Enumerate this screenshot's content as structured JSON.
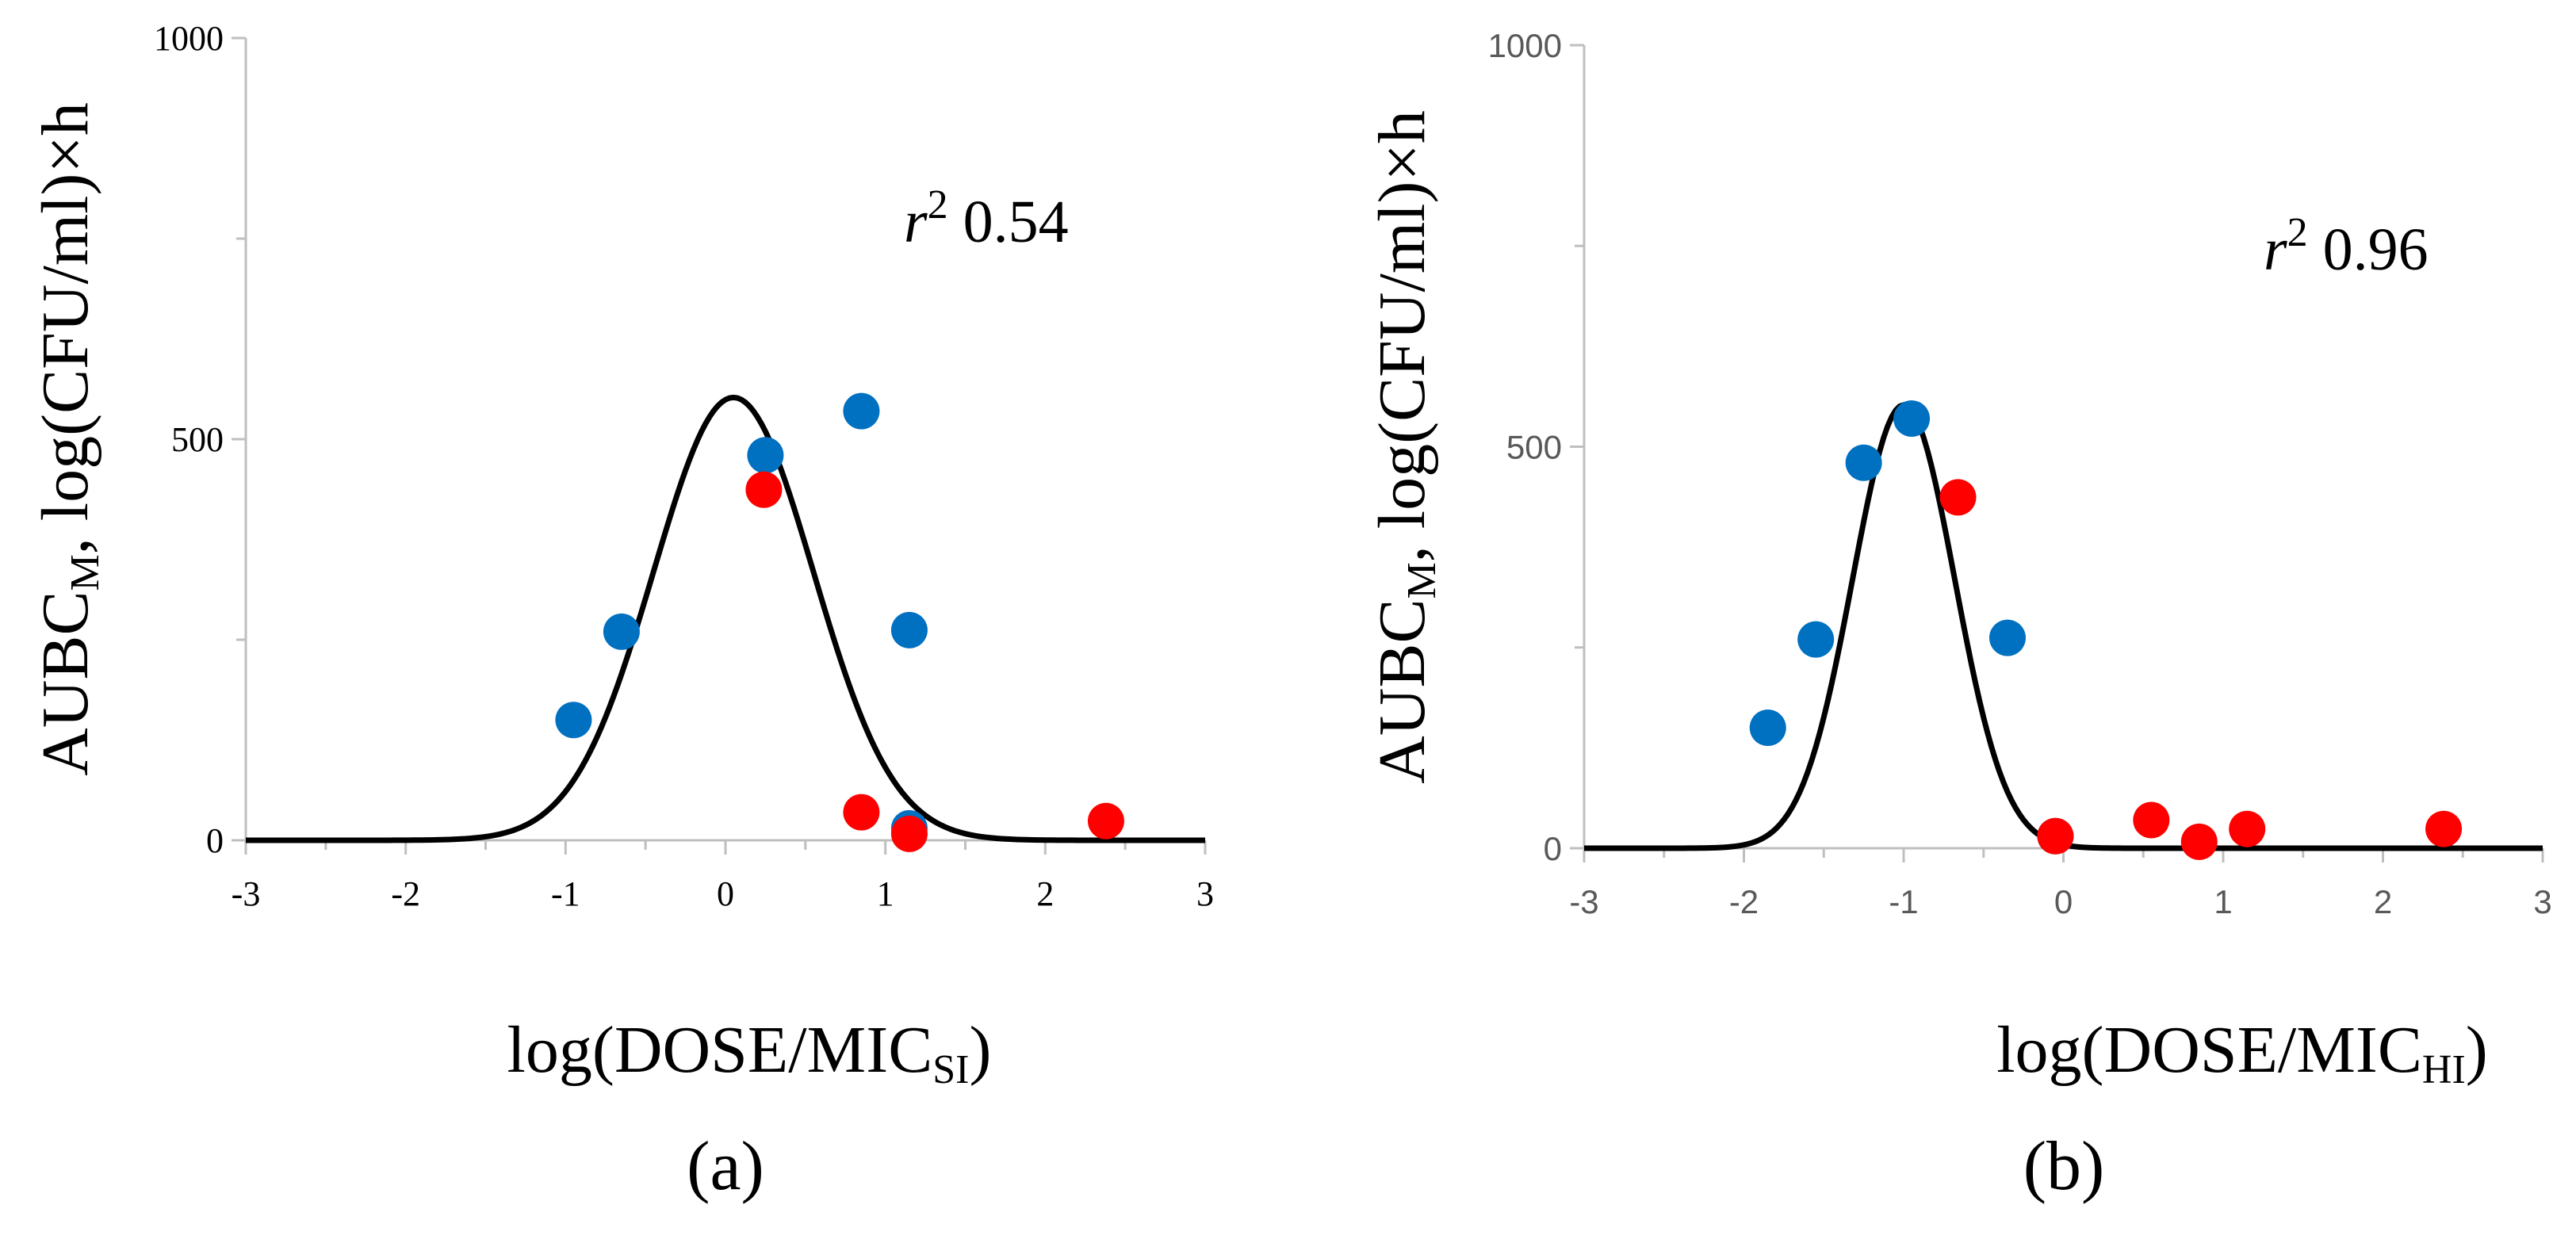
{
  "chart_data": [
    {
      "type": "scatter",
      "panel_label": "(a)",
      "ylabel": {
        "main": "AUBC",
        "sub": "M",
        "rest": ", log(CFU/ml)×h"
      },
      "xlabel": {
        "main": "log(DOSE/MIC",
        "sub": "SI",
        "close": ")"
      },
      "xlim": [
        -3,
        3
      ],
      "ylim": [
        0,
        1000
      ],
      "xticks": [
        "-3",
        "-2",
        "-1",
        "0",
        "1",
        "2",
        "3"
      ],
      "yticks": [
        "0",
        "500",
        "1000"
      ],
      "annotation": {
        "r": "r",
        "sup": "2",
        "value": " 0.54"
      },
      "fit_curve": {
        "peak_x": 0.05,
        "peak_y": 552,
        "sigma": 0.5,
        "color": "#000000"
      },
      "series": [
        {
          "name": "blue",
          "color": "#0070C0",
          "points": [
            {
              "x": -0.95,
              "y": 150
            },
            {
              "x": -0.65,
              "y": 260
            },
            {
              "x": 0.25,
              "y": 480
            },
            {
              "x": 0.85,
              "y": 535
            },
            {
              "x": 1.15,
              "y": 262
            },
            {
              "x": 1.15,
              "y": 15
            }
          ]
        },
        {
          "name": "red",
          "color": "#FF0000",
          "points": [
            {
              "x": 0.24,
              "y": 437
            },
            {
              "x": 0.85,
              "y": 35
            },
            {
              "x": 1.15,
              "y": 8
            },
            {
              "x": 2.38,
              "y": 24
            }
          ]
        }
      ]
    },
    {
      "type": "scatter",
      "panel_label": "(b)",
      "ylabel": {
        "main": "AUBC",
        "sub": "M",
        "rest": ", log(CFU/ml)×h"
      },
      "xlabel": {
        "main": "log(DOSE/MIC",
        "sub": "HI",
        "close": ")"
      },
      "xlim": [
        -3,
        3
      ],
      "ylim": [
        0,
        1000
      ],
      "xticks": [
        "-3",
        "-2",
        "-1",
        "0",
        "1",
        "2",
        "3"
      ],
      "yticks": [
        "0",
        "500",
        "1000"
      ],
      "annotation": {
        "r": "r",
        "sup": "2",
        "value": " 0.96"
      },
      "fit_curve": {
        "peak_x": -1.0,
        "peak_y": 552,
        "sigma": 0.32,
        "color": "#000000"
      },
      "series": [
        {
          "name": "blue",
          "color": "#0070C0",
          "points": [
            {
              "x": -1.85,
              "y": 150
            },
            {
              "x": -1.55,
              "y": 260
            },
            {
              "x": -1.25,
              "y": 480
            },
            {
              "x": -0.95,
              "y": 535
            },
            {
              "x": -0.35,
              "y": 262
            },
            {
              "x": -0.05,
              "y": 15
            }
          ]
        },
        {
          "name": "red",
          "color": "#FF0000",
          "points": [
            {
              "x": -0.66,
              "y": 437
            },
            {
              "x": -0.05,
              "y": 15
            },
            {
              "x": 0.55,
              "y": 35
            },
            {
              "x": 0.85,
              "y": 8
            },
            {
              "x": 1.15,
              "y": 24
            },
            {
              "x": 2.38,
              "y": 24
            }
          ]
        }
      ]
    }
  ]
}
